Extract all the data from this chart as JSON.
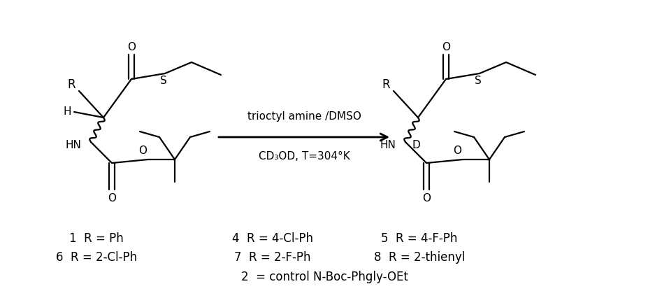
{
  "background_color": "#ffffff",
  "arrow_label_line1": "trioctyl amine /DMSO",
  "arrow_label_line2": "CD₃OD, T=304°K",
  "compound_labels": [
    "1  R = Ph",
    "4  R = 4-Cl-Ph",
    "5  R = 4-F-Ph",
    "6  R = 2-Cl-Ph",
    "7  R = 2-F-Ph",
    "8  R = 2-thienyl",
    "2  = control N-Boc-Phgly-OEt"
  ],
  "text_color": "#000000",
  "line_color": "#000000"
}
